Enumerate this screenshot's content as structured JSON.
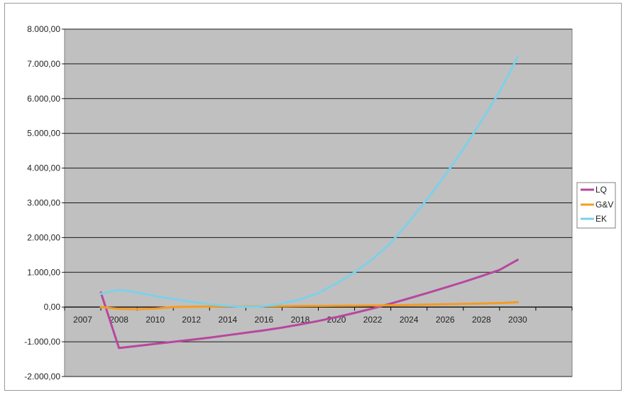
{
  "chart_data": {
    "type": "line",
    "title": "",
    "xlabel": "",
    "ylabel": "",
    "ylim": [
      -2000,
      8000
    ],
    "yticks": [
      -2000,
      -1000,
      0,
      1000,
      2000,
      3000,
      4000,
      5000,
      6000,
      7000,
      8000
    ],
    "ytick_labels": [
      "-2.000,00",
      "-1.000,00",
      "0,00",
      "1.000,00",
      "2.000,00",
      "3.000,00",
      "4.000,00",
      "5.000,00",
      "6.000,00",
      "7.000,00",
      "8.000,00"
    ],
    "x": [
      2008,
      2009,
      2010,
      2011,
      2012,
      2013,
      2014,
      2015,
      2016,
      2017,
      2018,
      2019,
      2020,
      2021,
      2022,
      2023,
      2024,
      2025,
      2026,
      2027,
      2028,
      2029,
      2030,
      2031
    ],
    "xtick_labels": [
      "2007",
      "2008",
      "2010",
      "2012",
      "2014",
      "2016",
      "2018",
      "2020",
      "2022",
      "2024",
      "2026",
      "2028",
      "2030"
    ],
    "grid": "horizontal",
    "plot_background": "#c0c0c0",
    "legend_position": "right",
    "series": [
      {
        "name": "LQ",
        "color": "#b8469e",
        "values": [
          420,
          -1180,
          -1120,
          -1060,
          -1000,
          -940,
          -880,
          -810,
          -740,
          -670,
          -590,
          -500,
          -400,
          -290,
          -170,
          -40,
          100,
          250,
          400,
          560,
          720,
          890,
          1070,
          1360
        ]
      },
      {
        "name": "G&V",
        "color": "#f59b22",
        "values": [
          0,
          -50,
          -60,
          -40,
          0,
          10,
          15,
          18,
          20,
          22,
          25,
          28,
          32,
          36,
          40,
          45,
          50,
          60,
          70,
          80,
          90,
          100,
          115,
          140
        ]
      },
      {
        "name": "EK",
        "color": "#7ed0e8",
        "values": [
          380,
          500,
          420,
          320,
          230,
          150,
          80,
          30,
          5,
          20,
          100,
          220,
          400,
          680,
          1000,
          1380,
          1850,
          2450,
          3100,
          3800,
          4550,
          5350,
          6200,
          7200
        ]
      }
    ]
  }
}
